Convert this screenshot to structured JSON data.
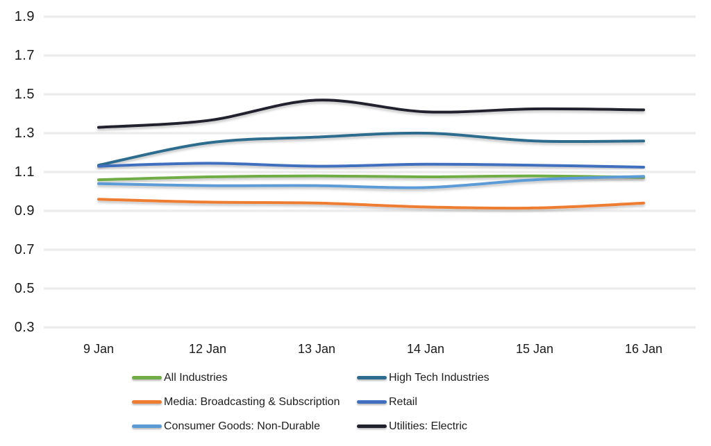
{
  "chart_data": {
    "type": "line",
    "title": "",
    "xlabel": "",
    "ylabel": "",
    "categories": [
      "9 Jan",
      "12 Jan",
      "13 Jan",
      "14 Jan",
      "15 Jan",
      "16 Jan"
    ],
    "yticks": [
      "1.9",
      "1.7",
      "1.5",
      "1.3",
      "1.1",
      "0.9",
      "0.7",
      "0.5",
      "0.3"
    ],
    "ylim": [
      0.3,
      1.9
    ],
    "grid": "horizontal-only",
    "legend_position": "bottom-two-columns",
    "series": [
      {
        "id": "all-industries",
        "name": "All Industries",
        "color": "#70ad47",
        "values": [
          1.06,
          1.075,
          1.08,
          1.075,
          1.08,
          1.072
        ]
      },
      {
        "id": "high-tech-industries",
        "name": "High Tech Industries",
        "color": "#2e6c8e",
        "values": [
          1.135,
          1.25,
          1.28,
          1.3,
          1.26,
          1.26
        ]
      },
      {
        "id": "media-broadcasting-subscription",
        "name": "Media: Broadcasting & Subscription",
        "color": "#ee7d30",
        "values": [
          0.96,
          0.945,
          0.94,
          0.92,
          0.915,
          0.94
        ]
      },
      {
        "id": "retail",
        "name": "Retail",
        "color": "#3f6fbd",
        "values": [
          1.13,
          1.145,
          1.13,
          1.14,
          1.135,
          1.125
        ]
      },
      {
        "id": "consumer-goods-non-durable",
        "name": "Consumer Goods: Non-Durable",
        "color": "#5b9bd5",
        "values": [
          1.04,
          1.03,
          1.03,
          1.02,
          1.06,
          1.078
        ]
      },
      {
        "id": "utilities-electric",
        "name": "Utilities: Electric",
        "color": "#21212e",
        "values": [
          1.33,
          1.365,
          1.47,
          1.41,
          1.425,
          1.42
        ]
      }
    ],
    "legend_order": [
      0,
      2,
      4,
      1,
      3,
      5
    ]
  }
}
